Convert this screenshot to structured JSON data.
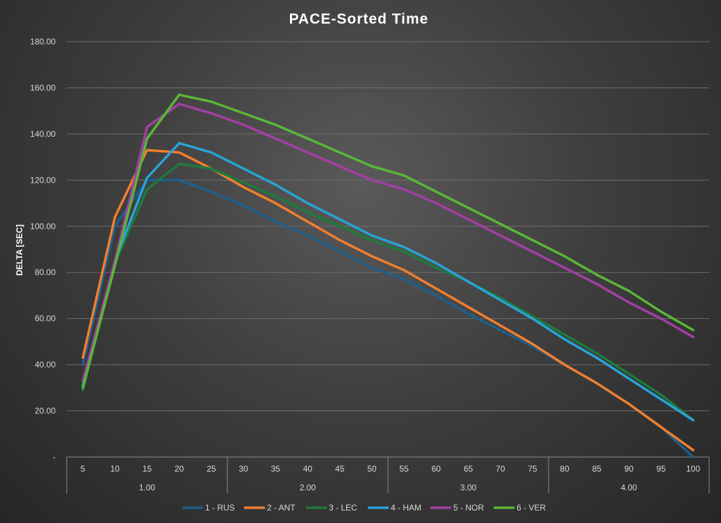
{
  "chart_data": {
    "type": "line",
    "title": "PACE-Sorted Time",
    "xlabel": "",
    "ylabel": "DELTA [SEC]",
    "ylim": [
      0,
      180
    ],
    "y_ticks": [
      "-",
      "20.00",
      "40.00",
      "60.00",
      "80.00",
      "100.00",
      "120.00",
      "140.00",
      "160.00",
      "180.00"
    ],
    "categories": [
      5,
      10,
      15,
      20,
      25,
      30,
      35,
      40,
      45,
      50,
      55,
      60,
      65,
      70,
      75,
      80,
      85,
      90,
      95,
      100
    ],
    "groups": [
      {
        "label": "1.00",
        "start": 0,
        "end": 4
      },
      {
        "label": "2.00",
        "start": 5,
        "end": 9
      },
      {
        "label": "3.00",
        "start": 10,
        "end": 14
      },
      {
        "label": "4.00",
        "start": 15,
        "end": 19
      }
    ],
    "legend_position": "bottom",
    "series": [
      {
        "name": "1 - RUS",
        "color": "#1f5f8b",
        "values": [
          40,
          100,
          120,
          120,
          115,
          109,
          102,
          96,
          89,
          82,
          77,
          70,
          62,
          55,
          48,
          40,
          32,
          23,
          13,
          0
        ]
      },
      {
        "name": "2 - ANT",
        "color": "#f07f2e",
        "values": [
          43,
          104,
          133,
          132,
          125,
          117,
          110,
          102,
          94,
          87,
          81,
          73,
          65,
          57,
          49,
          40,
          32,
          23,
          13,
          3
        ]
      },
      {
        "name": "3 - LEC",
        "color": "#1e7a3e",
        "values": [
          29,
          84,
          116,
          127,
          125,
          119,
          113,
          106,
          100,
          94,
          89,
          82,
          76,
          69,
          61,
          53,
          45,
          36,
          27,
          16
        ]
      },
      {
        "name": "4 - HAM",
        "color": "#29a3d6",
        "values": [
          31,
          85,
          121,
          136,
          132,
          125,
          118,
          110,
          103,
          96,
          91,
          84,
          76,
          68,
          60,
          51,
          43,
          34,
          25,
          16
        ]
      },
      {
        "name": "5 - NOR",
        "color": "#a33fa3",
        "values": [
          33,
          85,
          143,
          153,
          149,
          144,
          138,
          132,
          126,
          120,
          116,
          110,
          103,
          96,
          89,
          82,
          75,
          67,
          60,
          52
        ]
      },
      {
        "name": "6 - VER",
        "color": "#5bb638",
        "values": [
          30,
          83,
          138,
          157,
          154,
          149,
          144,
          138,
          132,
          126,
          122,
          115,
          108,
          101,
          94,
          87,
          79,
          72,
          63,
          55
        ]
      }
    ]
  }
}
